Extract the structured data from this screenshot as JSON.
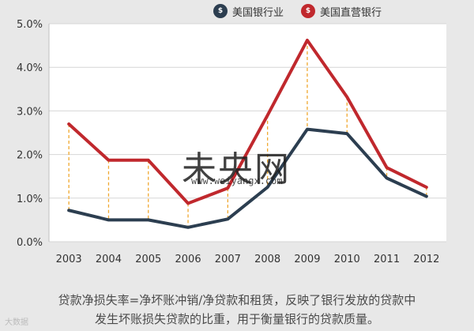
{
  "legend": {
    "series1": {
      "label": "美国银行业",
      "color": "#2c3e50"
    },
    "series2": {
      "label": "美国直营银行",
      "color": "#c0282d"
    }
  },
  "chart_data": {
    "type": "line",
    "title": "",
    "xlabel": "",
    "ylabel": "",
    "x": [
      "2003",
      "2004",
      "2005",
      "2006",
      "2007",
      "2008",
      "2009",
      "2010",
      "2011",
      "2012"
    ],
    "ylim": [
      0,
      5
    ],
    "yticks": [
      "0.0%",
      "1.0%",
      "2.0%",
      "3.0%",
      "4.0%",
      "5.0%"
    ],
    "yticks_values": [
      0,
      1,
      2,
      3,
      4,
      5
    ],
    "grid": true,
    "legend_position": "top-right",
    "series": [
      {
        "name": "美国银行业",
        "color": "#2c3e50",
        "values": [
          0.72,
          0.5,
          0.5,
          0.33,
          0.52,
          1.25,
          2.58,
          2.48,
          1.46,
          1.04
        ]
      },
      {
        "name": "美国直营银行",
        "color": "#c0282d",
        "values": [
          2.7,
          1.87,
          1.87,
          0.88,
          1.23,
          2.9,
          4.62,
          3.32,
          1.7,
          1.25
        ]
      }
    ],
    "drop_lines_color": "#f0a830"
  },
  "caption": {
    "line1": "贷款净损失率=净坏账冲销/净贷款和租赁，反映了银行发放的贷款中",
    "line2": "发生坏账损失贷款的比重，用于衡量银行的贷款质量。"
  },
  "watermark": {
    "name": "未央网",
    "url": "www.weiyangx.com"
  },
  "source_mark": "大数据"
}
